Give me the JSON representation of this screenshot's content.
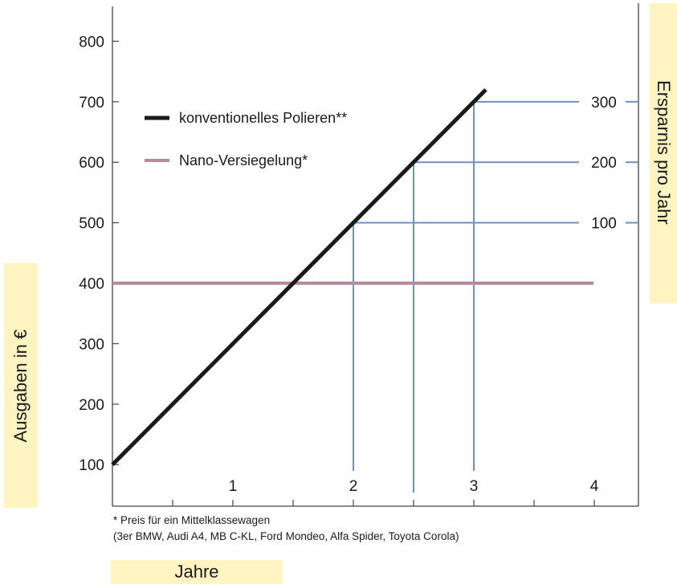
{
  "chart_data": {
    "type": "line",
    "x": [
      0,
      4
    ],
    "series": [
      {
        "name": "konventionelles Polieren**",
        "color": "#1a1a1a",
        "x": [
          0,
          3.1
        ],
        "values": [
          100,
          720
        ]
      },
      {
        "name": "Nano-Versiegelung*",
        "color": "#b78aa0",
        "x": [
          0,
          4
        ],
        "values": [
          400,
          400
        ]
      }
    ],
    "xticks": [
      "1",
      "2",
      "3",
      "4"
    ],
    "xtick_values": [
      1,
      2,
      3,
      4
    ],
    "xlim": [
      0,
      4.3
    ],
    "yticks": [
      "100",
      "200",
      "300",
      "400",
      "500",
      "600",
      "700",
      "800"
    ],
    "ytick_values": [
      100,
      200,
      300,
      400,
      500,
      600,
      700,
      800
    ],
    "ylim": [
      30,
      830
    ],
    "y2ticks": [
      "100",
      "200",
      "300"
    ],
    "y2tick_values": [
      500,
      600,
      700
    ],
    "savings_markers": [
      {
        "x": 2,
        "y": 500,
        "label": "100"
      },
      {
        "x": 2.5,
        "y": 600,
        "label": "200"
      },
      {
        "x": 3,
        "y": 700,
        "label": "300"
      }
    ],
    "marker_color": "#7090bf",
    "xlabel": "Jahre",
    "ylabel": "Ausgaben in €",
    "y2label": "Ersparnis pro Jahr",
    "legend": "top-left",
    "grid": false
  },
  "footnote_1": "* Preis für ein Mittelklassewagen",
  "footnote_2": "(3er BMW, Audi A4, MB C-KL, Ford Mondeo, Alfa Spider, Toyota Corola)"
}
